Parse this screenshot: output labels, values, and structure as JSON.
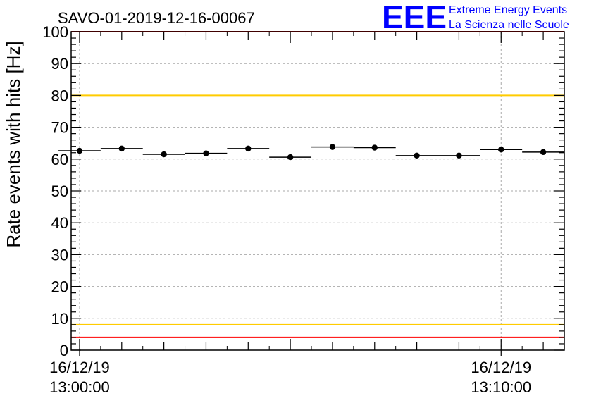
{
  "chart_data": {
    "type": "scatter",
    "title": "SAVO-01-2019-12-16-00067",
    "xlabel": "",
    "ylabel": "Rate events with hits [Hz]",
    "ylim": [
      0,
      100
    ],
    "xlim_minutes": [
      -0.2,
      11.5
    ],
    "yticks": [
      0,
      10,
      20,
      30,
      40,
      50,
      60,
      70,
      80,
      90,
      100
    ],
    "xtick_labels": [
      {
        "minute": 0,
        "date": "16/12/19",
        "time": "13:00:00"
      },
      {
        "minute": 10,
        "date": "16/12/19",
        "time": "13:10:00"
      }
    ],
    "bin_width_minutes": 1,
    "series": [
      {
        "name": "rate",
        "x_minutes": [
          0.0,
          1.0,
          2.0,
          3.0,
          4.0,
          5.0,
          6.0,
          7.0,
          8.0,
          9.0,
          10.0,
          11.0
        ],
        "values": [
          62.6,
          63.3,
          61.5,
          61.8,
          63.3,
          60.6,
          63.8,
          63.6,
          61.1,
          61.1,
          63.0,
          62.2
        ]
      }
    ],
    "reference_lines": [
      {
        "y": 100,
        "color": "#ff0000"
      },
      {
        "y": 80,
        "color": "#ffcc00"
      },
      {
        "y": 8,
        "color": "#ffcc00"
      },
      {
        "y": 4,
        "color": "#ff0000"
      }
    ],
    "grid": true
  },
  "logo": {
    "mark": "EEE",
    "line1": "Extreme Energy Events",
    "line2": "La Scienza nelle Scuole",
    "color": "#0000ff"
  }
}
